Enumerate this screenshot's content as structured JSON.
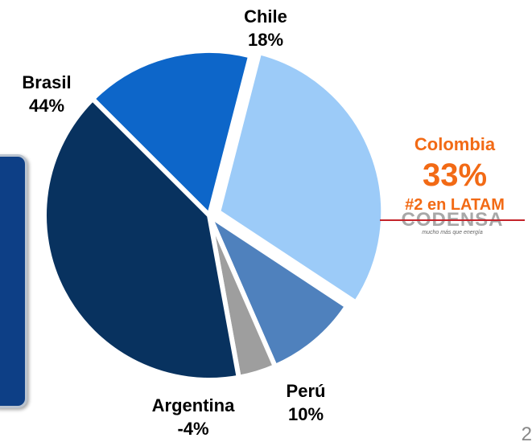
{
  "chart_data": {
    "type": "pie",
    "categories": [
      "Chile",
      "Colombia",
      "Perú",
      "Argentina",
      "Brasil"
    ],
    "values": [
      18,
      33,
      10,
      -4,
      44
    ],
    "labels": [
      "18%",
      "33%",
      "10%",
      "-4%",
      "44%"
    ],
    "colors": {
      "Chile": "#0d66c9",
      "Colombia": "#9ccbf8",
      "Perú": "#4f81bd",
      "Argentina": "#9e9e9e",
      "Brasil": "#08325f"
    },
    "annotations": [
      "#2 en LATAM"
    ]
  },
  "highlight_color": "#f26a15",
  "logo": {
    "name": "CODENSA",
    "tagline": "mucho más que energía"
  },
  "page_number": "2"
}
